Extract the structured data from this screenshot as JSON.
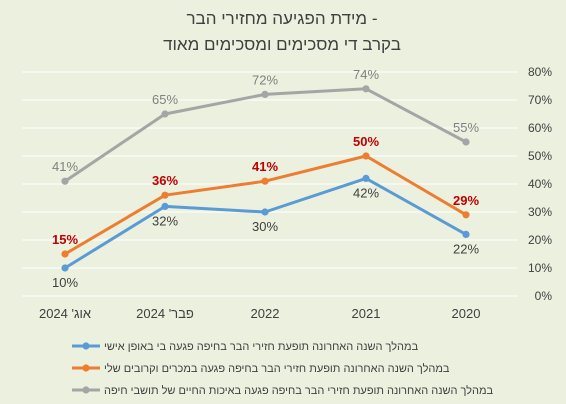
{
  "chart_data": {
    "type": "line",
    "title": [
      "מידת הפגיעה מחזירי הבר -",
      "בקרב די מסכימים ומסכימים מאוד"
    ],
    "categories": [
      "אוג' 2024",
      "פבר' 2024",
      "2022",
      "2021",
      "2020"
    ],
    "y_ticks": [
      "0%",
      "10%",
      "20%",
      "30%",
      "40%",
      "50%",
      "60%",
      "70%",
      "80%"
    ],
    "ylim": [
      0,
      80
    ],
    "y_axis_side": "right",
    "grid": true,
    "legend_position": "bottom",
    "series": [
      {
        "name": "במהלך השנה האחרונה תופעת חזירי הבר בחיפה פגעה בי באופן אישי",
        "values": [
          10,
          32,
          30,
          42,
          22
        ],
        "labels": [
          "10%",
          "32%",
          "30%",
          "42%",
          "22%"
        ],
        "color": "#5b9bd5",
        "label_color": "#404040",
        "label_position": "below"
      },
      {
        "name": "במהלך השנה האחרונה תופעת חזירי הבר בחיפה פגעה במכרים וקרובים שלי",
        "values": [
          15,
          36,
          41,
          50,
          29
        ],
        "labels": [
          "15%",
          "36%",
          "41%",
          "50%",
          "29%"
        ],
        "color": "#ed7d31",
        "label_color": "#c00000",
        "label_position": "above"
      },
      {
        "name": "במהלך השנה האחרונה תופעת חזירי הבר בחיפה פגעה באיכות החיים של תושבי חיפה",
        "values": [
          41,
          65,
          72,
          74,
          55
        ],
        "labels": [
          "41%",
          "65%",
          "72%",
          "74%",
          "55%"
        ],
        "color": "#a5a5a5",
        "label_color": "#808080",
        "label_position": "above"
      }
    ]
  }
}
